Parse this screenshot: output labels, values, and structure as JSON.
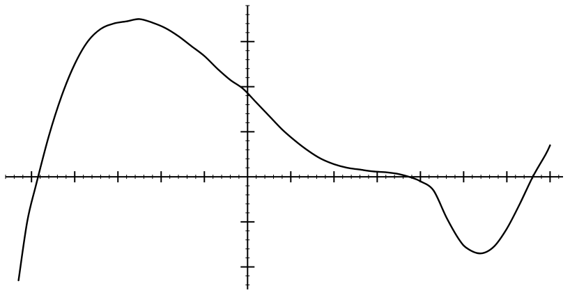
{
  "chart_data": {
    "type": "line",
    "title": "",
    "xlabel": "",
    "ylabel": "",
    "xlim": [
      -5.6,
      7.3
    ],
    "ylim": [
      -2.5,
      3.8
    ],
    "grid": false,
    "legend": "none",
    "x_major_ticks": [
      -5,
      -4,
      -3,
      -2,
      -1,
      1,
      2,
      3,
      4,
      5,
      6,
      7
    ],
    "y_major_ticks": [
      -2,
      -1,
      1,
      2,
      3
    ],
    "minor_ticks_per_unit": 5,
    "series": [
      {
        "color": "#000000",
        "x": [
          -5.3,
          -5.1,
          -4.9,
          -4.6,
          -4.3,
          -4.0,
          -3.7,
          -3.4,
          -3.1,
          -2.8,
          -2.5,
          -2.2,
          -1.9,
          -1.6,
          -1.3,
          -1.0,
          -0.7,
          -0.4,
          -0.1,
          0.2,
          0.5,
          0.8,
          1.1,
          1.4,
          1.7,
          2.0,
          2.3,
          2.6,
          2.9,
          3.2,
          3.5,
          3.8,
          4.0,
          4.3,
          4.6,
          4.9,
          5.1,
          5.4,
          5.7,
          6.0,
          6.3,
          6.6,
          6.9,
          7.0
        ],
        "y": [
          -2.3,
          -1.0,
          -0.2,
          0.9,
          1.8,
          2.5,
          3.0,
          3.28,
          3.4,
          3.45,
          3.5,
          3.42,
          3.3,
          3.12,
          2.9,
          2.68,
          2.4,
          2.15,
          1.95,
          1.65,
          1.35,
          1.05,
          0.8,
          0.58,
          0.4,
          0.28,
          0.2,
          0.16,
          0.12,
          0.1,
          0.06,
          -0.02,
          -0.1,
          -0.3,
          -0.9,
          -1.4,
          -1.6,
          -1.7,
          -1.55,
          -1.15,
          -0.6,
          0.0,
          0.5,
          0.7
        ]
      }
    ]
  }
}
